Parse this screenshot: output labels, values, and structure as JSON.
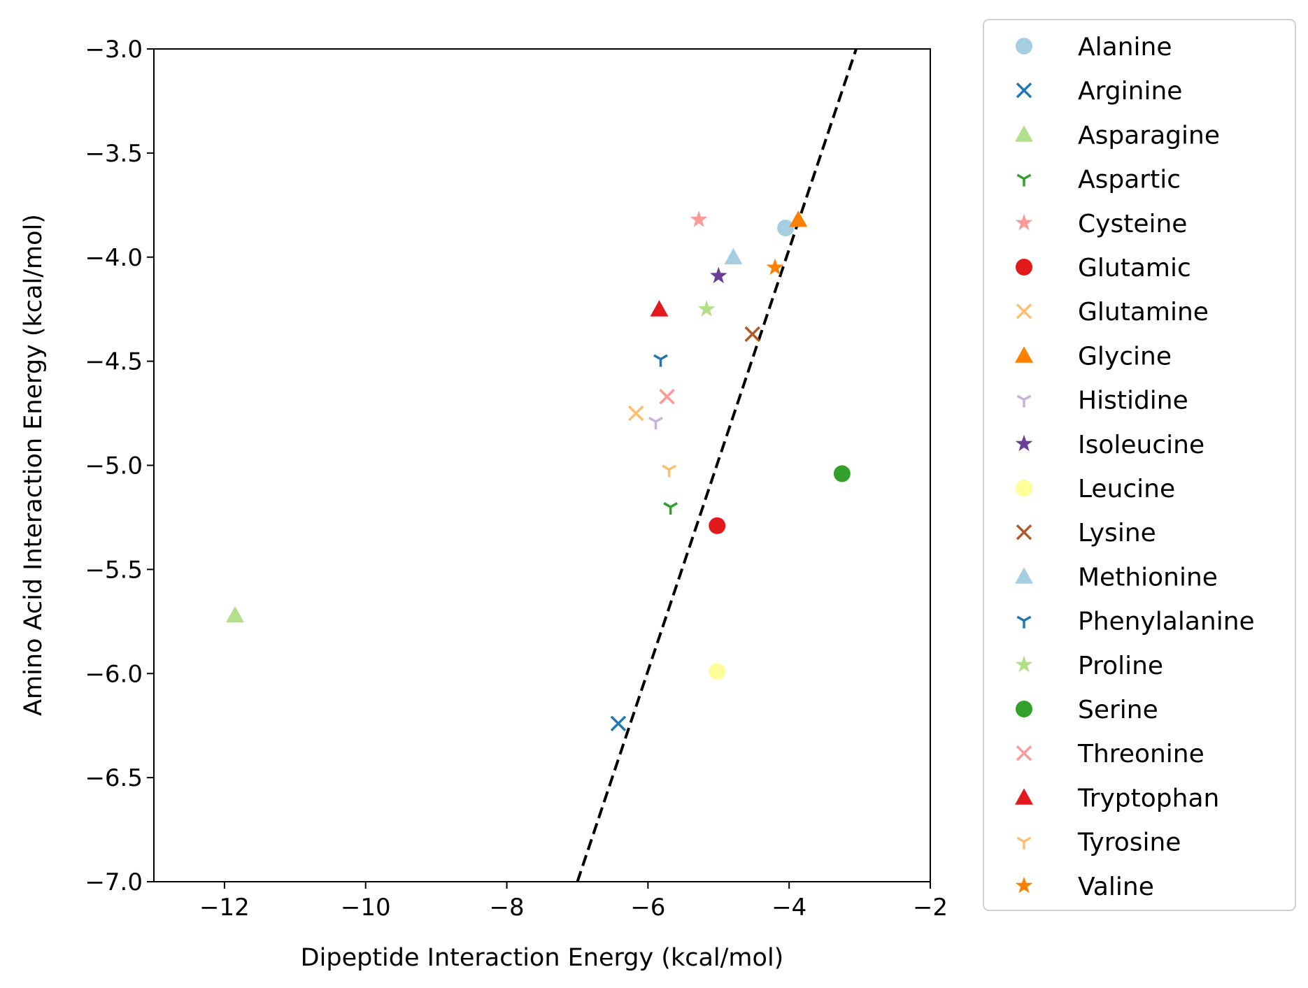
{
  "chart_data": {
    "type": "scatter",
    "xlabel": "Dipeptide Interaction Energy (kcal/mol)",
    "ylabel": "Amino Acid Interaction Energy (kcal/mol)",
    "xlim": [
      -13,
      -2
    ],
    "ylim": [
      -7,
      -3
    ],
    "xticks": [
      -12,
      -10,
      -8,
      -6,
      -4,
      -2
    ],
    "yticks": [
      -7.0,
      -6.5,
      -6.0,
      -5.5,
      -5.0,
      -4.5,
      -4.0,
      -3.5,
      -3.0
    ],
    "xtick_labels": [
      "−12",
      "−10",
      "−8",
      "−6",
      "−4",
      "−2"
    ],
    "ytick_labels": [
      "−7.0",
      "−6.5",
      "−6.0",
      "−5.5",
      "−5.0",
      "−4.5",
      "−4.0",
      "−3.5",
      "−3.0"
    ],
    "grid": false,
    "legend_position": "outside-right",
    "reference_line": {
      "style": "dashed",
      "color": "#000000",
      "points": [
        [
          -7.0,
          -7.0
        ],
        [
          -3.05,
          -3.0
        ]
      ]
    },
    "series": [
      {
        "name": "Alanine",
        "marker": "circle",
        "color": "#a6cee3",
        "points": [
          [
            -4.05,
            -3.86
          ]
        ]
      },
      {
        "name": "Arginine",
        "marker": "x",
        "color": "#1f78b4",
        "points": [
          [
            -6.42,
            -6.24
          ]
        ]
      },
      {
        "name": "Asparagine",
        "marker": "triangle",
        "color": "#b2df8a",
        "points": [
          [
            -11.85,
            -5.72
          ]
        ]
      },
      {
        "name": "Aspartic",
        "marker": "tri_down",
        "color": "#33a02c",
        "points": [
          [
            -5.68,
            -5.2
          ]
        ]
      },
      {
        "name": "Cysteine",
        "marker": "star",
        "color": "#fb9a99",
        "points": [
          [
            -5.28,
            -3.82
          ]
        ]
      },
      {
        "name": "Glutamic",
        "marker": "circle",
        "color": "#e31a1c",
        "points": [
          [
            -5.02,
            -5.29
          ]
        ]
      },
      {
        "name": "Glutamine",
        "marker": "x",
        "color": "#fdbf6f",
        "points": [
          [
            -6.17,
            -4.75
          ]
        ]
      },
      {
        "name": "Glycine",
        "marker": "triangle",
        "color": "#ff7f00",
        "points": [
          [
            -3.87,
            -3.82
          ]
        ]
      },
      {
        "name": "Histidine",
        "marker": "tri_down",
        "color": "#cab2d6",
        "points": [
          [
            -5.89,
            -4.79
          ]
        ]
      },
      {
        "name": "Isoleucine",
        "marker": "star",
        "color": "#6a3d9a",
        "points": [
          [
            -5.0,
            -4.09
          ]
        ]
      },
      {
        "name": "Leucine",
        "marker": "circle",
        "color": "#ffff99",
        "points": [
          [
            -5.02,
            -5.99
          ]
        ]
      },
      {
        "name": "Lysine",
        "marker": "x",
        "color": "#b15928",
        "points": [
          [
            -4.52,
            -4.37
          ]
        ]
      },
      {
        "name": "Methionine",
        "marker": "triangle",
        "color": "#a6cee3",
        "points": [
          [
            -4.79,
            -4.0
          ]
        ]
      },
      {
        "name": "Phenylalanine",
        "marker": "tri_down",
        "color": "#1f78b4",
        "points": [
          [
            -5.82,
            -4.49
          ]
        ]
      },
      {
        "name": "Proline",
        "marker": "star",
        "color": "#b2df8a",
        "points": [
          [
            -5.17,
            -4.25
          ]
        ]
      },
      {
        "name": "Serine",
        "marker": "circle",
        "color": "#33a02c",
        "points": [
          [
            -3.25,
            -5.04
          ]
        ]
      },
      {
        "name": "Threonine",
        "marker": "x",
        "color": "#fb9a99",
        "points": [
          [
            -5.73,
            -4.67
          ]
        ]
      },
      {
        "name": "Tryptophan",
        "marker": "triangle",
        "color": "#e31a1c",
        "points": [
          [
            -5.84,
            -4.25
          ]
        ]
      },
      {
        "name": "Tyrosine",
        "marker": "tri_down",
        "color": "#fdbf6f",
        "points": [
          [
            -5.7,
            -5.02
          ]
        ]
      },
      {
        "name": "Valine",
        "marker": "star",
        "color": "#ff7f00",
        "points": [
          [
            -4.2,
            -4.05
          ]
        ]
      }
    ]
  }
}
